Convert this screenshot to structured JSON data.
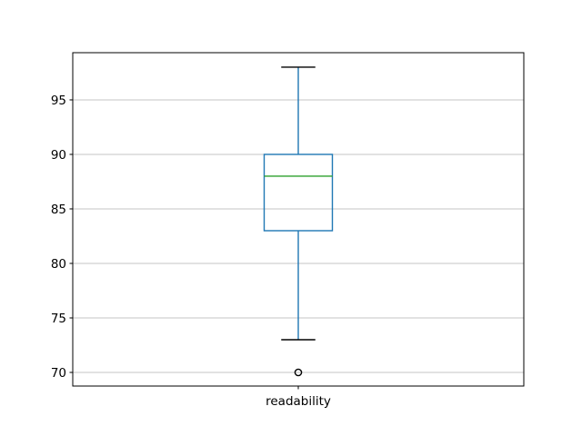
{
  "figure": {
    "title": "",
    "background": "#ffffff"
  },
  "chart_data": {
    "type": "boxplot",
    "title": "",
    "xlabel": "",
    "ylabel": "",
    "categories": [
      "readability"
    ],
    "series": [
      {
        "name": "readability",
        "whisker_low": 73,
        "q1": 83,
        "median": 88,
        "q3": 90,
        "whisker_high": 98,
        "outliers": [
          70
        ]
      }
    ],
    "yticks": [
      70,
      75,
      80,
      85,
      90,
      95
    ],
    "ytick_labels": [
      "70",
      "75",
      "80",
      "85",
      "90",
      "95"
    ],
    "ylim": [
      68.75,
      99.33
    ],
    "grid": true,
    "legend": false,
    "colors": {
      "box": "#1f77b4",
      "whisker": "#1f77b4",
      "cap": "#000000",
      "median": "#2ca02c",
      "flier": "#000000",
      "grid": "#b0b0b0",
      "spine": "#000000",
      "tick_text": "#000000",
      "background": "#ffffff"
    }
  }
}
